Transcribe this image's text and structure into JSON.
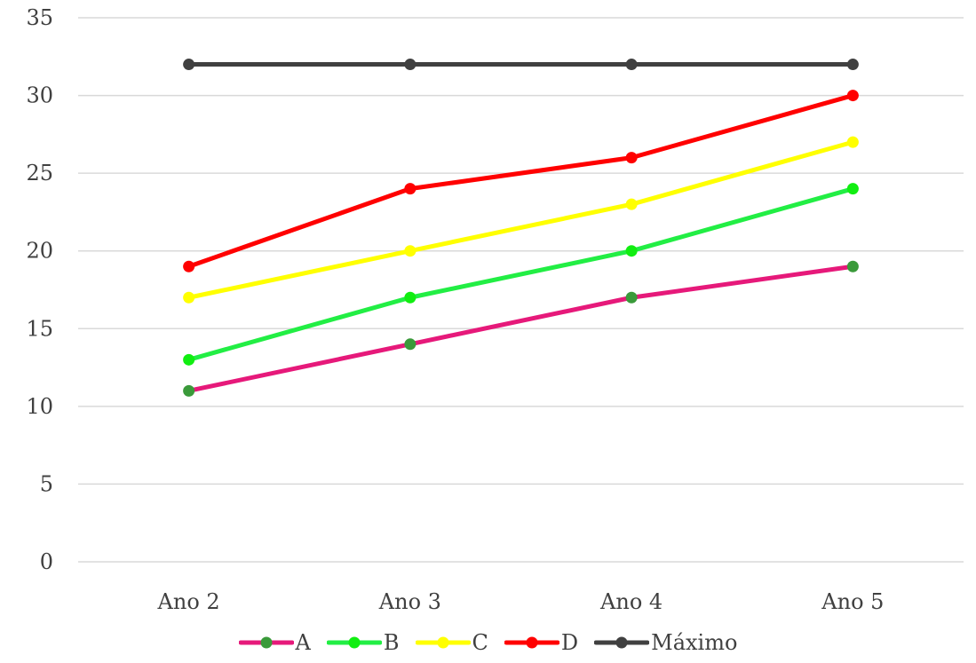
{
  "chart_data": {
    "type": "line",
    "title": "",
    "xlabel": "",
    "ylabel": "",
    "categories": [
      "Ano 2",
      "Ano 3",
      "Ano 4",
      "Ano 5"
    ],
    "ylim": [
      0,
      35
    ],
    "yticks": [
      0,
      5,
      10,
      15,
      20,
      25,
      30,
      35
    ],
    "grid": true,
    "legend_position": "bottom",
    "series": [
      {
        "name": "A",
        "values": [
          11,
          14,
          17,
          19
        ],
        "color": "#e6197a",
        "marker_color": "#3a9a3a"
      },
      {
        "name": "B",
        "values": [
          13,
          17,
          20,
          24
        ],
        "color": "#22ee44",
        "marker_color": "#11ee11"
      },
      {
        "name": "C",
        "values": [
          17,
          20,
          23,
          27
        ],
        "color": "#ffff00",
        "marker_color": "#ffff00"
      },
      {
        "name": "D",
        "values": [
          19,
          24,
          26,
          30
        ],
        "color": "#ff0000",
        "marker_color": "#ff0000"
      },
      {
        "name": "Máximo",
        "values": [
          32,
          32,
          32,
          32
        ],
        "color": "#404040",
        "marker_color": "#404040"
      }
    ]
  }
}
